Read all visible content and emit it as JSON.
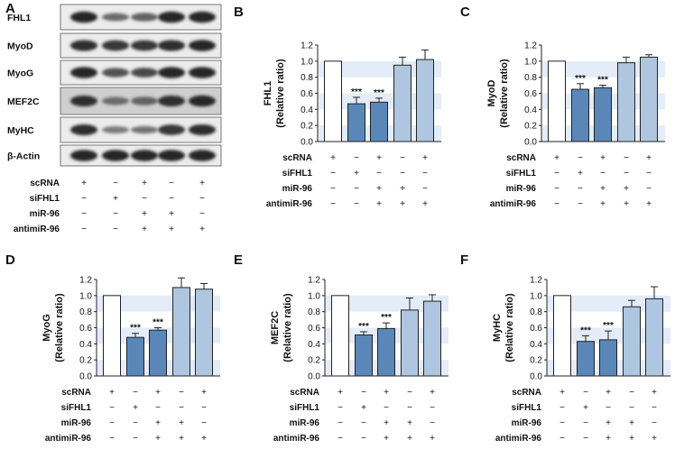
{
  "figure": {
    "panel_letters": [
      "A",
      "B",
      "C",
      "D",
      "E",
      "F"
    ],
    "conditions": [
      {
        "label": "scRNA",
        "marks": [
          "+",
          "−",
          "+",
          "−",
          "+"
        ]
      },
      {
        "label": "siFHL1",
        "marks": [
          "−",
          "+",
          "−",
          "−",
          "−"
        ]
      },
      {
        "label": "miR-96",
        "marks": [
          "−",
          "−",
          "+",
          "+",
          "−"
        ]
      },
      {
        "label": "antimiR-96",
        "marks": [
          "−",
          "−",
          "+",
          "+",
          "+"
        ]
      }
    ],
    "blot_proteins": [
      "FHL1",
      "MyoD",
      "MyoG",
      "MEF2C",
      "MyHC",
      "β-Actin"
    ],
    "colors": {
      "control_bar": "#ffffff",
      "knockdown_bar": "#5a87b8",
      "rescue_bar": "#afc6e0",
      "band_stripe": "#e3ecf8",
      "bar_edge": "#222222"
    }
  },
  "chart_data": [
    {
      "type": "bar",
      "letter": "B",
      "ylabel": "FHL1",
      "ylabel2": "(Relative ratio)",
      "ylim": [
        0,
        1.2
      ],
      "yticks": [
        "0.0",
        "0.2",
        "0.4",
        "0.6",
        "0.8",
        "1.0",
        "1.2"
      ],
      "values": [
        1.0,
        0.47,
        0.49,
        0.95,
        1.02
      ],
      "errors": [
        0.0,
        0.08,
        0.05,
        0.1,
        0.12
      ],
      "annotations": [
        "",
        "***",
        "***",
        "",
        ""
      ]
    },
    {
      "type": "bar",
      "letter": "C",
      "ylabel": "MyoD",
      "ylabel2": "(Relative ratio)",
      "ylim": [
        0,
        1.2
      ],
      "yticks": [
        "0.0",
        "0.2",
        "0.4",
        "0.6",
        "0.8",
        "1.0",
        "1.2"
      ],
      "values": [
        1.0,
        0.65,
        0.67,
        0.98,
        1.05
      ],
      "errors": [
        0.0,
        0.07,
        0.03,
        0.07,
        0.03
      ],
      "annotations": [
        "",
        "***",
        "***",
        "",
        ""
      ]
    },
    {
      "type": "bar",
      "letter": "D",
      "ylabel": "MyoG",
      "ylabel2": "(Relative ratio)",
      "ylim": [
        0,
        1.2
      ],
      "yticks": [
        "0.0",
        "0.2",
        "0.4",
        "0.6",
        "0.8",
        "1.0",
        "1.2"
      ],
      "values": [
        1.0,
        0.48,
        0.57,
        1.1,
        1.08
      ],
      "errors": [
        0.0,
        0.05,
        0.03,
        0.12,
        0.07
      ],
      "annotations": [
        "",
        "***",
        "***",
        "",
        ""
      ]
    },
    {
      "type": "bar",
      "letter": "E",
      "ylabel": "MEF2C",
      "ylabel2": "(Relative ratio)",
      "ylim": [
        0,
        1.2
      ],
      "yticks": [
        "0.0",
        "0.2",
        "0.4",
        "0.6",
        "0.8",
        "1.0",
        "1.2"
      ],
      "values": [
        1.0,
        0.51,
        0.59,
        0.82,
        0.93
      ],
      "errors": [
        0.0,
        0.04,
        0.07,
        0.15,
        0.08
      ],
      "annotations": [
        "",
        "***",
        "***",
        "",
        ""
      ]
    },
    {
      "type": "bar",
      "letter": "F",
      "ylabel": "MyHC",
      "ylabel2": "(Relative ratio)",
      "ylim": [
        0,
        1.2
      ],
      "yticks": [
        "0.0",
        "0.2",
        "0.4",
        "0.6",
        "0.8",
        "1.0",
        "1.2"
      ],
      "values": [
        1.0,
        0.43,
        0.45,
        0.86,
        0.96
      ],
      "errors": [
        0.0,
        0.07,
        0.11,
        0.08,
        0.15
      ],
      "annotations": [
        "",
        "***",
        "***",
        "",
        ""
      ]
    }
  ]
}
